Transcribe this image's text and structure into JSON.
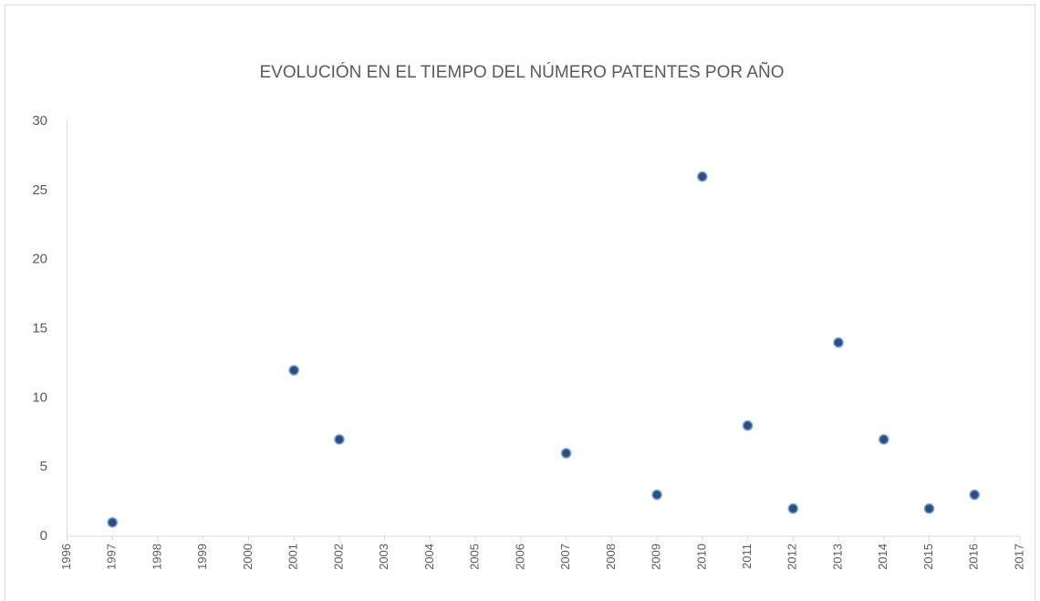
{
  "chart_data": {
    "type": "scatter",
    "title": "EVOLUCIÓN EN EL TIEMPO DEL NÚMERO PATENTES POR AÑO",
    "series": [
      {
        "name": "Patentes",
        "color": "#2f4e7a",
        "x": [
          1997,
          2001,
          2002,
          2007,
          2009,
          2010,
          2011,
          2012,
          2013,
          2014,
          2015,
          2016
        ],
        "values": [
          1,
          12,
          7,
          6,
          3,
          26,
          8,
          2,
          14,
          7,
          2,
          3
        ]
      }
    ],
    "xlim": [
      1996,
      2017
    ],
    "xticks": [
      1996,
      1997,
      1998,
      1999,
      2000,
      2001,
      2002,
      2003,
      2004,
      2005,
      2006,
      2007,
      2008,
      2009,
      2010,
      2011,
      2012,
      2013,
      2014,
      2015,
      2016,
      2017
    ],
    "ylim": [
      0,
      30
    ],
    "yticks": [
      0,
      5,
      10,
      15,
      20,
      25,
      30
    ],
    "grid": false
  }
}
